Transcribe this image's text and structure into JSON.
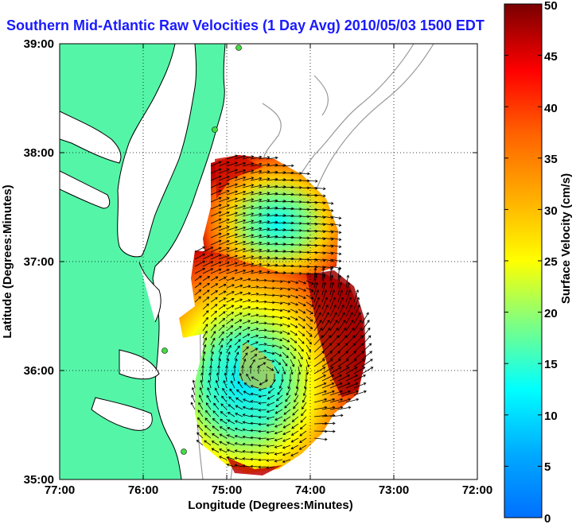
{
  "title": "Southern Mid-Atlantic Raw Velocities (1 Day Avg) 2010/05/03 1500 EDT",
  "colors": {
    "land": "#55f5a8",
    "water": "#ffffff",
    "title": "#1a1aff",
    "bathymetry": "#999999"
  },
  "chart_data": {
    "type": "map",
    "x_axis": {
      "label": "Longitude (Degrees:Minutes)",
      "range": [
        -77,
        -72
      ],
      "ticks": [
        "77:00",
        "76:00",
        "75:00",
        "74:00",
        "73:00",
        "72:00"
      ]
    },
    "y_axis": {
      "label": "Latitude (Degrees:Minutes)",
      "range": [
        35,
        39
      ],
      "ticks": [
        "35:00",
        "36:00",
        "37:00",
        "38:00",
        "39:00"
      ]
    },
    "grid": "dotted",
    "colorbar": {
      "label": "Surface Velocity (cm/s)",
      "range": [
        0,
        50
      ],
      "ticks": [
        "0",
        "5",
        "10",
        "15",
        "20",
        "25",
        "30",
        "35",
        "40",
        "45",
        "50"
      ],
      "colormap": "jet"
    }
  }
}
